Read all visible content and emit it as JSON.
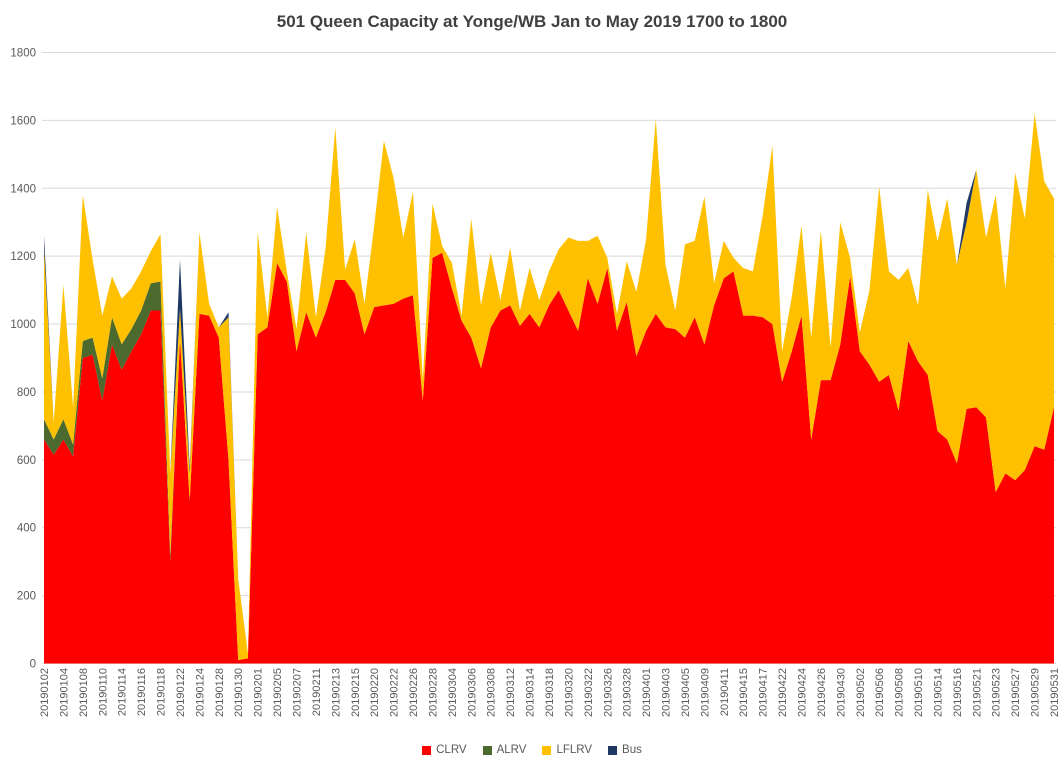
{
  "chart_data": {
    "type": "area",
    "stacked": true,
    "title": "501 Queen Capacity at Yonge/WB Jan to May 2019 1700 to 1800",
    "title_color": "#404040",
    "background": "#FFFFFF",
    "grid": "horizontal",
    "gridline_color": "#D9D9D9",
    "axis_label_color": "#595959",
    "legend_position": "bottom",
    "x_labels_every": 2,
    "ylim": [
      0,
      1800
    ],
    "ytick_step": 200,
    "y_tick_labels": [
      "0",
      "200",
      "400",
      "600",
      "800",
      "1000",
      "1200",
      "1400",
      "1600",
      "1800"
    ],
    "categories": [
      "20190102",
      "20190103",
      "20190104",
      "20190107",
      "20190108",
      "20190109",
      "20190110",
      "20190111",
      "20190114",
      "20190115",
      "20190116",
      "20190117",
      "20190118",
      "20190121",
      "20190122",
      "20190123",
      "20190124",
      "20190125",
      "20190128",
      "20190129",
      "20190130",
      "20190131",
      "20190201",
      "20190204",
      "20190205",
      "20190206",
      "20190207",
      "20190208",
      "20190211",
      "20190212",
      "20190213",
      "20190214",
      "20190215",
      "20190219",
      "20190220",
      "20190221",
      "20190222",
      "20190225",
      "20190226",
      "20190227",
      "20190228",
      "20190301",
      "20190304",
      "20190305",
      "20190306",
      "20190307",
      "20190308",
      "20190311",
      "20190312",
      "20190313",
      "20190314",
      "20190315",
      "20190318",
      "20190319",
      "20190320",
      "20190321",
      "20190322",
      "20190325",
      "20190326",
      "20190327",
      "20190328",
      "20190329",
      "20190401",
      "20190402",
      "20190403",
      "20190404",
      "20190405",
      "20190408",
      "20190409",
      "20190410",
      "20190411",
      "20190412",
      "20190415",
      "20190416",
      "20190417",
      "20190418",
      "20190422",
      "20190423",
      "20190424",
      "20190425",
      "20190426",
      "20190429",
      "20190430",
      "20190501",
      "20190502",
      "20190503",
      "20190506",
      "20190507",
      "20190508",
      "20190509",
      "20190510",
      "20190513",
      "20190514",
      "20190515",
      "20190516",
      "20190517",
      "20190521",
      "20190522",
      "20190523",
      "20190524",
      "20190527",
      "20190528",
      "20190529",
      "20190530",
      "20190531"
    ],
    "series": [
      {
        "name": "CLRV",
        "color": "#FF0000",
        "values": [
          660,
          615,
          660,
          610,
          900,
          910,
          775,
          940,
          865,
          920,
          970,
          1040,
          1040,
          300,
          955,
          480,
          1030,
          1025,
          960,
          600,
          10,
          15,
          970,
          990,
          1180,
          1125,
          920,
          1035,
          960,
          1035,
          1130,
          1130,
          1090,
          970,
          1050,
          1055,
          1060,
          1075,
          1085,
          775,
          1195,
          1210,
          1105,
          1010,
          960,
          870,
          990,
          1040,
          1055,
          995,
          1030,
          990,
          1055,
          1100,
          1040,
          980,
          1135,
          1060,
          1165,
          980,
          1065,
          905,
          980,
          1030,
          990,
          985,
          960,
          1020,
          940,
          1055,
          1135,
          1155,
          1025,
          1025,
          1020,
          1000,
          830,
          920,
          1025,
          660,
          835,
          835,
          940,
          1140,
          920,
          880,
          830,
          850,
          745,
          950,
          890,
          850,
          685,
          660,
          590,
          750,
          755,
          725,
          505,
          560,
          540,
          570,
          640,
          630,
          755
        ]
      },
      {
        "name": "ALRV",
        "color": "#4C6A2D",
        "values": [
          60,
          45,
          60,
          35,
          50,
          50,
          65,
          80,
          75,
          65,
          70,
          80,
          85,
          20,
          0,
          0,
          0,
          0,
          0,
          0,
          0,
          0,
          0,
          0,
          0,
          0,
          0,
          0,
          0,
          0,
          0,
          0,
          0,
          0,
          0,
          0,
          0,
          0,
          0,
          0,
          0,
          0,
          0,
          0,
          0,
          0,
          0,
          0,
          0,
          0,
          0,
          0,
          0,
          0,
          0,
          0,
          0,
          0,
          0,
          0,
          0,
          0,
          0,
          0,
          0,
          0,
          0,
          0,
          0,
          0,
          0,
          0,
          0,
          0,
          0,
          0,
          0,
          0,
          0,
          0,
          0,
          0,
          0,
          0,
          0,
          0,
          0,
          0,
          0,
          0,
          0,
          0,
          0,
          0,
          0,
          0,
          0,
          0,
          0,
          0,
          0,
          0,
          0,
          0,
          0
        ]
      },
      {
        "name": "LFLRV",
        "color": "#FFC000",
        "values": [
          500,
          50,
          395,
          110,
          430,
          230,
          185,
          120,
          135,
          120,
          115,
          95,
          140,
          240,
          90,
          80,
          240,
          35,
          30,
          420,
          240,
          15,
          300,
          30,
          165,
          30,
          65,
          235,
          60,
          190,
          450,
          30,
          160,
          90,
          240,
          485,
          370,
          180,
          305,
          60,
          160,
          20,
          75,
          15,
          350,
          185,
          220,
          30,
          170,
          45,
          135,
          80,
          100,
          120,
          215,
          265,
          110,
          200,
          30,
          50,
          120,
          190,
          270,
          575,
          185,
          55,
          275,
          225,
          435,
          65,
          110,
          40,
          140,
          130,
          300,
          525,
          90,
          160,
          265,
          300,
          440,
          95,
          360,
          55,
          55,
          220,
          575,
          305,
          385,
          215,
          165,
          545,
          560,
          710,
          585,
          550,
          700,
          530,
          875,
          545,
          905,
          740,
          980,
          790,
          615
        ]
      },
      {
        "name": "Bus",
        "color": "#1F3864",
        "values": [
          40,
          0,
          0,
          0,
          0,
          0,
          0,
          0,
          0,
          0,
          0,
          0,
          0,
          0,
          145,
          15,
          0,
          0,
          0,
          15,
          0,
          0,
          0,
          0,
          0,
          0,
          0,
          0,
          0,
          0,
          0,
          0,
          0,
          0,
          0,
          0,
          0,
          0,
          0,
          0,
          0,
          0,
          0,
          0,
          0,
          0,
          0,
          0,
          0,
          0,
          0,
          0,
          0,
          0,
          0,
          0,
          0,
          0,
          0,
          0,
          0,
          0,
          0,
          0,
          0,
          0,
          0,
          0,
          0,
          0,
          0,
          0,
          0,
          0,
          0,
          0,
          0,
          0,
          0,
          0,
          0,
          0,
          0,
          0,
          0,
          0,
          0,
          0,
          0,
          0,
          0,
          0,
          0,
          0,
          0,
          57,
          0,
          0,
          0,
          0,
          0,
          0,
          0,
          0,
          0
        ]
      }
    ]
  },
  "legend": {
    "items": [
      {
        "label": "CLRV",
        "color": "#FF0000"
      },
      {
        "label": "ALRV",
        "color": "#4C6A2D"
      },
      {
        "label": "LFLRV",
        "color": "#FFC000"
      },
      {
        "label": "Bus",
        "color": "#1F3864"
      }
    ]
  }
}
